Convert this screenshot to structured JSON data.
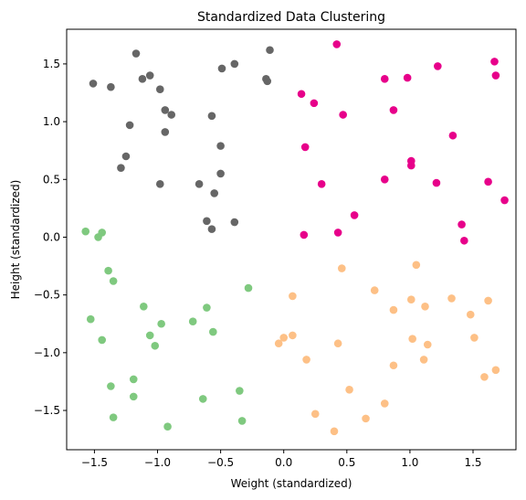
{
  "chart_data": {
    "type": "scatter",
    "title": "Standardized Data Clustering",
    "xlabel": "Weight (standardized)",
    "ylabel": "Height (standardized)",
    "xlim": [
      -1.72,
      1.84
    ],
    "ylim": [
      -1.84,
      1.8
    ],
    "xticks": [
      -1.5,
      -1.0,
      -0.5,
      0.0,
      0.5,
      1.0,
      1.5
    ],
    "xtick_labels": [
      "−1.5",
      "−1.0",
      "−0.5",
      "0.0",
      "0.5",
      "1.0",
      "1.5"
    ],
    "yticks": [
      -1.5,
      -1.0,
      -0.5,
      0.0,
      0.5,
      1.0,
      1.5
    ],
    "ytick_labels": [
      "−1.5",
      "−1.0",
      "−0.5",
      "0.0",
      "0.5",
      "1.0",
      "1.5"
    ],
    "grid": false,
    "series": [
      {
        "color": "#666666",
        "points": [
          [
            -1.51,
            1.33
          ],
          [
            -1.37,
            1.3
          ],
          [
            -1.17,
            1.59
          ],
          [
            -1.12,
            1.37
          ],
          [
            -1.06,
            1.4
          ],
          [
            -0.98,
            1.28
          ],
          [
            -0.94,
            1.1
          ],
          [
            -0.89,
            1.06
          ],
          [
            -0.94,
            0.91
          ],
          [
            -1.22,
            0.97
          ],
          [
            -1.25,
            0.7
          ],
          [
            -1.29,
            0.6
          ],
          [
            -0.98,
            0.46
          ],
          [
            -0.57,
            1.05
          ],
          [
            -0.49,
            1.46
          ],
          [
            -0.39,
            1.5
          ],
          [
            -0.14,
            1.37
          ],
          [
            -0.13,
            1.35
          ],
          [
            -0.11,
            1.62
          ],
          [
            -0.5,
            0.79
          ],
          [
            -0.5,
            0.55
          ],
          [
            -0.67,
            0.46
          ],
          [
            -0.55,
            0.38
          ],
          [
            -0.61,
            0.14
          ],
          [
            -0.57,
            0.07
          ],
          [
            -0.39,
            0.13
          ]
        ]
      },
      {
        "color": "#e7008a",
        "points": [
          [
            0.42,
            1.67
          ],
          [
            0.14,
            1.24
          ],
          [
            0.24,
            1.16
          ],
          [
            0.47,
            1.06
          ],
          [
            0.17,
            0.78
          ],
          [
            0.3,
            0.46
          ],
          [
            0.56,
            0.19
          ],
          [
            0.16,
            0.02
          ],
          [
            0.43,
            0.04
          ],
          [
            0.8,
            1.37
          ],
          [
            0.98,
            1.38
          ],
          [
            0.87,
            1.1
          ],
          [
            1.01,
            0.66
          ],
          [
            1.01,
            0.62
          ],
          [
            0.8,
            0.5
          ],
          [
            1.22,
            1.48
          ],
          [
            1.34,
            0.88
          ],
          [
            1.21,
            0.47
          ],
          [
            1.41,
            0.11
          ],
          [
            1.43,
            -0.03
          ],
          [
            1.62,
            0.48
          ],
          [
            1.67,
            1.52
          ],
          [
            1.68,
            1.4
          ],
          [
            1.75,
            0.32
          ]
        ]
      },
      {
        "color": "#7fc97f",
        "points": [
          [
            -1.57,
            0.05
          ],
          [
            -1.47,
            0.0
          ],
          [
            -1.44,
            0.04
          ],
          [
            -1.39,
            -0.29
          ],
          [
            -1.35,
            -0.38
          ],
          [
            -1.53,
            -0.71
          ],
          [
            -1.44,
            -0.89
          ],
          [
            -1.11,
            -0.6
          ],
          [
            -0.97,
            -0.75
          ],
          [
            -1.06,
            -0.85
          ],
          [
            -1.02,
            -0.94
          ],
          [
            -0.72,
            -0.73
          ],
          [
            -0.61,
            -0.61
          ],
          [
            -0.56,
            -0.82
          ],
          [
            -0.28,
            -0.44
          ],
          [
            -1.19,
            -1.23
          ],
          [
            -1.37,
            -1.29
          ],
          [
            -1.19,
            -1.38
          ],
          [
            -1.35,
            -1.56
          ],
          [
            -0.92,
            -1.64
          ],
          [
            -0.64,
            -1.4
          ],
          [
            -0.35,
            -1.33
          ],
          [
            -0.33,
            -1.59
          ]
        ]
      },
      {
        "color": "#fdc086",
        "points": [
          [
            -0.04,
            -0.92
          ],
          [
            0.0,
            -0.87
          ],
          [
            0.07,
            -0.85
          ],
          [
            0.07,
            -0.51
          ],
          [
            0.18,
            -1.06
          ],
          [
            0.25,
            -1.53
          ],
          [
            0.4,
            -1.68
          ],
          [
            0.43,
            -0.92
          ],
          [
            0.46,
            -0.27
          ],
          [
            0.52,
            -1.32
          ],
          [
            0.65,
            -1.57
          ],
          [
            0.72,
            -0.46
          ],
          [
            0.8,
            -1.44
          ],
          [
            0.87,
            -1.11
          ],
          [
            0.87,
            -0.63
          ],
          [
            1.01,
            -0.54
          ],
          [
            1.02,
            -0.88
          ],
          [
            1.05,
            -0.24
          ],
          [
            1.11,
            -1.06
          ],
          [
            1.12,
            -0.6
          ],
          [
            1.14,
            -0.93
          ],
          [
            1.33,
            -0.53
          ],
          [
            1.48,
            -0.67
          ],
          [
            1.51,
            -0.87
          ],
          [
            1.59,
            -1.21
          ],
          [
            1.62,
            -0.55
          ],
          [
            1.68,
            -1.15
          ]
        ]
      }
    ]
  }
}
